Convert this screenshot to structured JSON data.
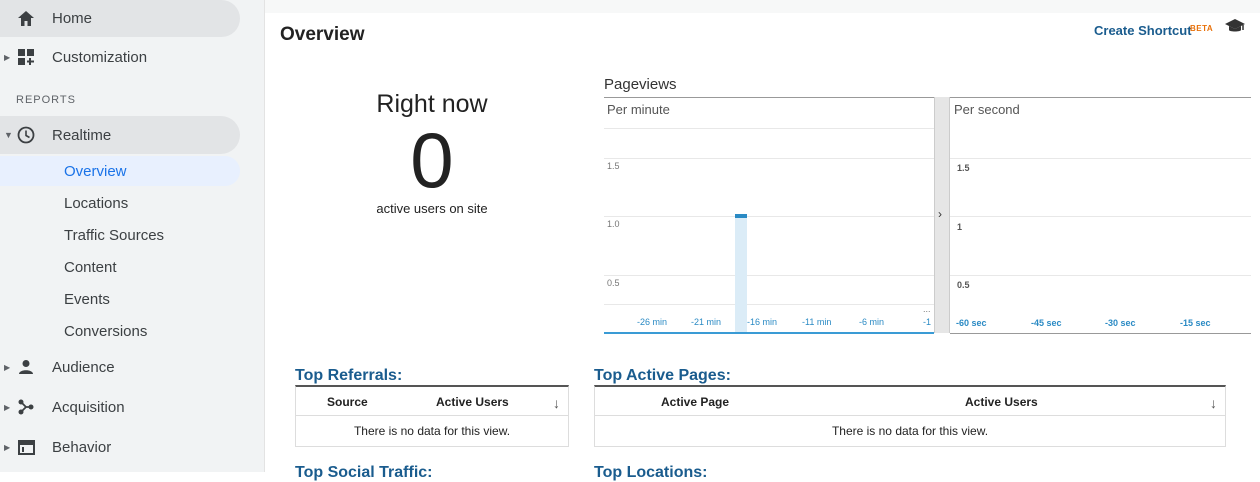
{
  "sidebar": {
    "home": "Home",
    "customization": "Customization",
    "section": "REPORTS",
    "realtime": "Realtime",
    "realtime_items": [
      "Overview",
      "Locations",
      "Traffic Sources",
      "Content",
      "Events",
      "Conversions"
    ],
    "audience": "Audience",
    "acquisition": "Acquisition",
    "behavior": "Behavior"
  },
  "header": {
    "title": "Overview",
    "shortcut": "Create Shortcut",
    "beta": "BETA"
  },
  "right_now": {
    "title": "Right now",
    "count": "0",
    "subtitle": "active users on site"
  },
  "pageviews": {
    "title": "Pageviews",
    "left_label": "Per minute",
    "right_label": "Per second",
    "left_y": [
      "1.5",
      "1.0",
      "0.5"
    ],
    "right_y": [
      "1.5",
      "1",
      "0.5"
    ],
    "left_x": [
      "-26 min",
      "-21 min",
      "-16 min",
      "-11 min",
      "-6 min",
      "-1"
    ],
    "right_x": [
      "-60 sec",
      "-45 sec",
      "-30 sec",
      "-15 sec"
    ],
    "ellipsis": "..."
  },
  "chart_data": {
    "type": "bar",
    "title": "Pageviews",
    "series": [
      {
        "name": "Per minute",
        "bars": [
          {
            "x": -16.5,
            "value": 1.0
          }
        ]
      }
    ],
    "ylim": [
      0,
      2
    ]
  },
  "referrals": {
    "title": "Top Referrals:",
    "col1": "Source",
    "col2": "Active Users",
    "empty": "There is no data for this view."
  },
  "pages": {
    "title": "Top Active Pages:",
    "col1": "Active Page",
    "col2": "Active Users",
    "empty": "There is no data for this view."
  },
  "cut_titles": {
    "left": "Top Social Traffic:",
    "right": "Top Locations:"
  },
  "colors": {
    "accent": "#1a73e8",
    "link": "#1a5c8e",
    "chart": "#2a8ac4"
  }
}
